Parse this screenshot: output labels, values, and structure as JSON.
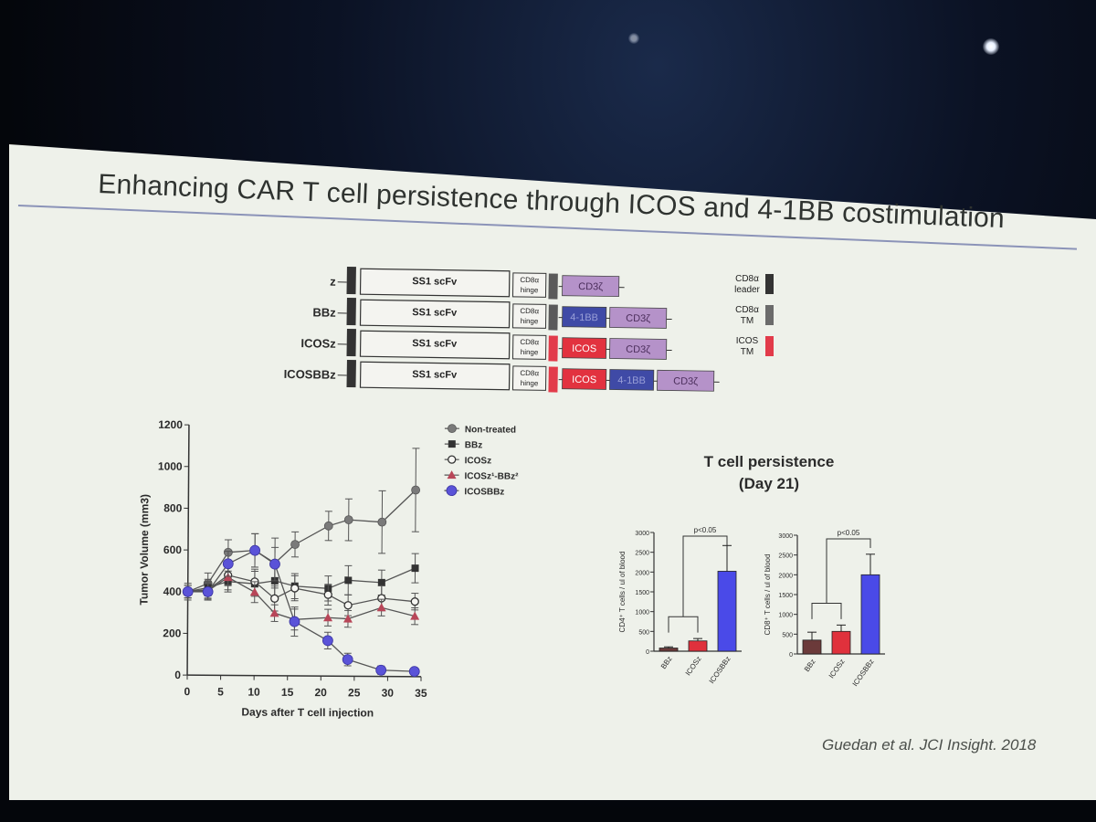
{
  "slide": {
    "title": "Enhancing CAR T cell persistence through ICOS and 4-1BB costimulation",
    "citation": "Guedan et al. JCI Insight. 2018"
  },
  "constructs": {
    "rows": [
      {
        "label": "z",
        "scfv": "SS1 scFv",
        "hinge": "CD8α hinge",
        "tm": "CD8α TM",
        "domains": [
          "CD3ζ"
        ]
      },
      {
        "label": "BBz",
        "scfv": "SS1 scFv",
        "hinge": "CD8α hinge",
        "tm": "CD8α TM",
        "domains": [
          "4-1BB",
          "CD3ζ"
        ]
      },
      {
        "label": "ICOSz",
        "scfv": "SS1 scFv",
        "hinge": "CD8α hinge",
        "tm": "ICOS TM",
        "domains": [
          "ICOS",
          "CD3ζ"
        ]
      },
      {
        "label": "ICOSBBz",
        "scfv": "SS1 scFv",
        "hinge": "CD8α hinge",
        "tm": "ICOS TM",
        "domains": [
          "ICOS",
          "4-1BB",
          "CD3ζ"
        ]
      }
    ],
    "legend": [
      {
        "label_line1": "CD8α",
        "label_line2": "leader",
        "color": "#333333"
      },
      {
        "label_line1": "CD8α",
        "label_line2": "TM",
        "color": "#6b6b6b"
      },
      {
        "label_line1": "ICOS",
        "label_line2": "TM",
        "color": "#e23b4a"
      }
    ],
    "colors": {
      "leader": "#333333",
      "cd8tm": "#5a5a5a",
      "icostm": "#e23b4a",
      "cd3z": "#b592c9",
      "bb41": "#3f4aa6",
      "icos": "#e2323f"
    }
  },
  "persistence_title_line1": "T cell persistence",
  "persistence_title_line2": "(Day 21)",
  "chart_data": [
    {
      "type": "line",
      "title": "",
      "xlabel": "Days after T cell injection",
      "ylabel": "Tumor Volume (mm3)",
      "xlim": [
        0,
        35
      ],
      "ylim": [
        0,
        1200
      ],
      "xticks": [
        0,
        5,
        10,
        15,
        20,
        25,
        30,
        35
      ],
      "yticks": [
        0,
        200,
        400,
        600,
        800,
        1000,
        1200
      ],
      "series": [
        {
          "name": "Non-treated",
          "marker": "hexagon",
          "color": "#7a7a7a",
          "x": [
            0,
            3,
            6,
            10,
            13,
            16,
            21,
            24,
            29,
            34
          ],
          "y": [
            400,
            440,
            590,
            600,
            540,
            630,
            720,
            750,
            740,
            895
          ],
          "err": [
            40,
            50,
            60,
            80,
            120,
            60,
            70,
            100,
            150,
            200
          ]
        },
        {
          "name": "BBz",
          "marker": "square",
          "color": "#333333",
          "x": [
            0,
            3,
            6,
            10,
            13,
            16,
            21,
            24,
            29,
            34
          ],
          "y": [
            400,
            420,
            450,
            440,
            455,
            430,
            420,
            460,
            450,
            520
          ],
          "err": [
            30,
            40,
            50,
            60,
            80,
            60,
            60,
            70,
            60,
            70
          ]
        },
        {
          "name": "ICOSz",
          "marker": "open-circle",
          "color": "#333333",
          "x": [
            0,
            3,
            6,
            10,
            13,
            16,
            21,
            24,
            29,
            34
          ],
          "y": [
            400,
            410,
            480,
            450,
            370,
            420,
            390,
            340,
            375,
            360
          ],
          "err": [
            30,
            40,
            50,
            60,
            60,
            60,
            50,
            50,
            60,
            40
          ]
        },
        {
          "name": "ICOSz¹-BBz²",
          "marker": "triangle",
          "color": "#b84658",
          "x": [
            0,
            3,
            6,
            10,
            13,
            16,
            21,
            24,
            29,
            34
          ],
          "y": [
            400,
            405,
            470,
            400,
            300,
            270,
            280,
            275,
            330,
            290
          ],
          "err": [
            30,
            40,
            60,
            50,
            40,
            50,
            40,
            40,
            40,
            40
          ]
        },
        {
          "name": "ICOSBBz",
          "marker": "circle",
          "color": "#5a53d8",
          "x": [
            0,
            3,
            6,
            10,
            13,
            16,
            21,
            24,
            29,
            34
          ],
          "y": [
            400,
            400,
            535,
            600,
            535,
            260,
            170,
            80,
            30,
            25
          ],
          "err": [
            30,
            40,
            60,
            80,
            80,
            70,
            40,
            30,
            20,
            15
          ]
        }
      ]
    },
    {
      "type": "bar",
      "title": "T cell persistence (Day 21)",
      "ylabel": "CD4⁺ T cells / ul of blood",
      "categories": [
        "BBz",
        "ICOSz",
        "ICOSBBz"
      ],
      "values": [
        80,
        260,
        2020
      ],
      "errors": [
        30,
        60,
        650
      ],
      "colors": [
        "#6b3a3a",
        "#e0313c",
        "#4a4ae8"
      ],
      "ylim": [
        0,
        3000
      ],
      "yticks": [
        0,
        500,
        1000,
        1500,
        2000,
        2500,
        3000
      ],
      "annotation": "p<0.05"
    },
    {
      "type": "bar",
      "title": "T cell persistence (Day 21)",
      "ylabel": "CD8⁺ T cells / ul of blood",
      "categories": [
        "BBz",
        "ICOSz",
        "ICOSBBz"
      ],
      "values": [
        350,
        570,
        2000
      ],
      "errors": [
        200,
        160,
        520
      ],
      "colors": [
        "#6b3a3a",
        "#e0313c",
        "#4a4ae8"
      ],
      "ylim": [
        0,
        3000
      ],
      "yticks": [
        0,
        500,
        1000,
        1500,
        2000,
        2500,
        3000
      ],
      "annotation": "p<0.05"
    }
  ]
}
